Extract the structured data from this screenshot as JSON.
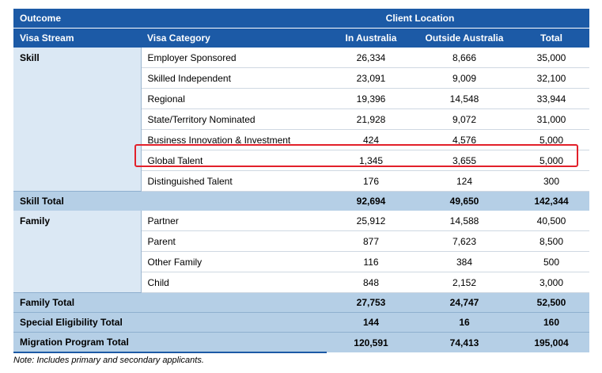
{
  "header": {
    "outcome": "Outcome",
    "client_location": "Client Location",
    "visa_stream": "Visa Stream",
    "visa_category": "Visa Category",
    "in_australia": "In Australia",
    "outside_australia": "Outside Australia",
    "total": "Total"
  },
  "skill": {
    "stream": "Skill",
    "rows": [
      {
        "category": "Employer Sponsored",
        "in": "26,334",
        "out": "8,666",
        "total": "35,000"
      },
      {
        "category": "Skilled Independent",
        "in": "23,091",
        "out": "9,009",
        "total": "32,100"
      },
      {
        "category": "Regional",
        "in": "19,396",
        "out": "14,548",
        "total": "33,944"
      },
      {
        "category": "State/Territory Nominated",
        "in": "21,928",
        "out": "9,072",
        "total": "31,000"
      },
      {
        "category": "Business Innovation & Investment",
        "in": "424",
        "out": "4,576",
        "total": "5,000"
      },
      {
        "category": "Global Talent",
        "in": "1,345",
        "out": "3,655",
        "total": "5,000"
      },
      {
        "category": "Distinguished Talent",
        "in": "176",
        "out": "124",
        "total": "300"
      }
    ],
    "total": {
      "label": "Skill Total",
      "in": "92,694",
      "out": "49,650",
      "total": "142,344"
    }
  },
  "family": {
    "stream": "Family",
    "rows": [
      {
        "category": "Partner",
        "in": "25,912",
        "out": "14,588",
        "total": "40,500"
      },
      {
        "category": "Parent",
        "in": "877",
        "out": "7,623",
        "total": "8,500"
      },
      {
        "category": "Other Family",
        "in": "116",
        "out": "384",
        "total": "500"
      },
      {
        "category": "Child",
        "in": "848",
        "out": "2,152",
        "total": "3,000"
      }
    ],
    "total": {
      "label": "Family Total",
      "in": "27,753",
      "out": "24,747",
      "total": "52,500"
    }
  },
  "special": {
    "label": "Special Eligibility Total",
    "in": "144",
    "out": "16",
    "total": "160"
  },
  "program": {
    "label": "Migration Program Total",
    "in": "120,591",
    "out": "74,413",
    "total": "195,004"
  },
  "note": "Note: Includes primary and secondary applicants.",
  "colors": {
    "header_bg": "#1c5aa6",
    "stream_bg": "#dbe8f4",
    "total_bg": "#b5cfe6",
    "highlight": "#e2202a"
  }
}
